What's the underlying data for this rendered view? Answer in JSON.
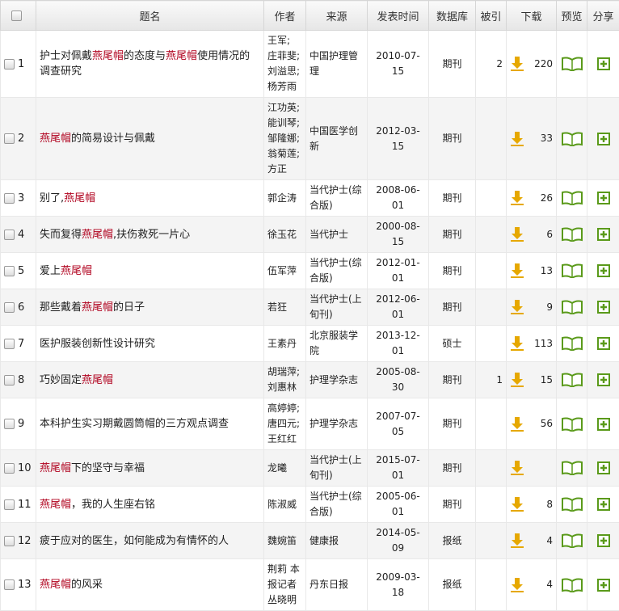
{
  "header": [
    "题名",
    "作者",
    "来源",
    "发表时间",
    "数据库",
    "被引",
    "下载",
    "预览",
    "分享"
  ],
  "rows": [
    {
      "no": "1",
      "title": [
        {
          "text": "护士对佩戴",
          "hl": false
        },
        {
          "text": "燕尾帽",
          "hl": true
        },
        {
          "text": "的态度与",
          "hl": false
        },
        {
          "text": "燕尾帽",
          "hl": true
        },
        {
          "text": "使用情况的调查研究",
          "hl": false
        }
      ],
      "author": "王军; 庄菲斐; 刘溢思; 杨芳雨",
      "source": "中国护理管理",
      "date": "2010-07-15",
      "db": "期刊",
      "cited": 2,
      "downloads": 220
    },
    {
      "no": "2",
      "title": [
        {
          "text": "燕尾帽",
          "hl": true
        },
        {
          "text": "的简易设计与佩戴",
          "hl": false
        }
      ],
      "author": "江功英; 能训琴; 邹隆娜; 翁菊莲; 方正",
      "source": "中国医学创新",
      "date": "2012-03-15",
      "db": "期刊",
      "cited": null,
      "downloads": 33
    },
    {
      "no": "3",
      "title": [
        {
          "text": "别了,",
          "hl": false
        },
        {
          "text": "燕尾帽",
          "hl": true
        }
      ],
      "author": "郭企涛",
      "source": "当代护士(综合版)",
      "date": "2008-06-01",
      "db": "期刊",
      "cited": null,
      "downloads": 26
    },
    {
      "no": "4",
      "title": [
        {
          "text": "失而复得",
          "hl": false
        },
        {
          "text": "燕尾帽",
          "hl": true
        },
        {
          "text": ",扶伤救死一片心",
          "hl": false
        }
      ],
      "author": "徐玉花",
      "source": "当代护士",
      "date": "2000-08-15",
      "db": "期刊",
      "cited": null,
      "downloads": 6
    },
    {
      "no": "5",
      "title": [
        {
          "text": "爱上",
          "hl": false
        },
        {
          "text": "燕尾帽",
          "hl": true
        }
      ],
      "author": "伍军萍",
      "source": "当代护士(综合版)",
      "date": "2012-01-01",
      "db": "期刊",
      "cited": null,
      "downloads": 13
    },
    {
      "no": "6",
      "title": [
        {
          "text": "那些戴着",
          "hl": false
        },
        {
          "text": "燕尾帽",
          "hl": true
        },
        {
          "text": "的日子",
          "hl": false
        }
      ],
      "author": "若狂",
      "source": "当代护士(上旬刊)",
      "date": "2012-06-01",
      "db": "期刊",
      "cited": null,
      "downloads": 9
    },
    {
      "no": "7",
      "title": [
        {
          "text": "医护服装创新性设计研究",
          "hl": false
        }
      ],
      "author": "王素丹",
      "source": "北京服装学院",
      "date": "2013-12-01",
      "db": "硕士",
      "cited": null,
      "downloads": 113
    },
    {
      "no": "8",
      "title": [
        {
          "text": "巧妙固定",
          "hl": false
        },
        {
          "text": "燕尾帽",
          "hl": true
        }
      ],
      "author": "胡瑞萍; 刘惠林",
      "source": "护理学杂志",
      "date": "2005-08-30",
      "db": "期刊",
      "cited": 1,
      "downloads": 15
    },
    {
      "no": "9",
      "title": [
        {
          "text": "本科护生实习期戴圆筒帽的三方观点调查",
          "hl": false
        }
      ],
      "author": "高婷婷; 唐四元; 王红红",
      "source": "护理学杂志",
      "date": "2007-07-05",
      "db": "期刊",
      "cited": null,
      "downloads": 56
    },
    {
      "no": "10",
      "title": [
        {
          "text": "燕尾帽",
          "hl": true
        },
        {
          "text": "下的坚守与幸福",
          "hl": false
        }
      ],
      "author": "龙曦",
      "source": "当代护士(上旬刊)",
      "date": "2015-07-01",
      "db": "期刊",
      "cited": null,
      "downloads": null
    },
    {
      "no": "11",
      "title": [
        {
          "text": "燕尾帽",
          "hl": true
        },
        {
          "text": "，我的人生座右铭",
          "hl": false
        }
      ],
      "author": "陈淑威",
      "source": "当代护士(综合版)",
      "date": "2005-06-01",
      "db": "期刊",
      "cited": null,
      "downloads": 8
    },
    {
      "no": "12",
      "title": [
        {
          "text": "疲于应对的医生，如何能成为有情怀的人",
          "hl": false
        }
      ],
      "author": "魏婉笛",
      "source": "健康报",
      "date": "2014-05-09",
      "db": "报纸",
      "cited": null,
      "downloads": 4
    },
    {
      "no": "13",
      "title": [
        {
          "text": "燕尾帽",
          "hl": true
        },
        {
          "text": "的风采",
          "hl": false
        }
      ],
      "author": "荆莉 本报记者 丛晓明",
      "source": "丹东日报",
      "date": "2009-03-18",
      "db": "报纸",
      "cited": null,
      "downloads": 4
    }
  ]
}
